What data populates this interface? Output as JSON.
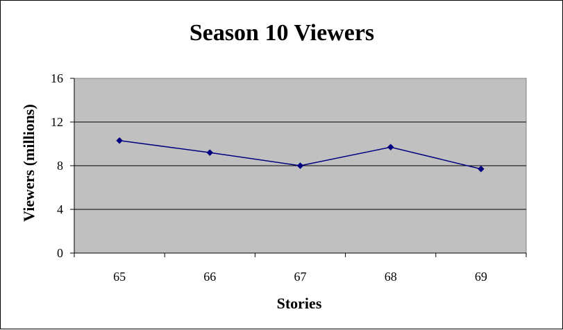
{
  "chart_data": {
    "type": "line",
    "title": "Season 10 Viewers",
    "xlabel": "Stories",
    "ylabel": "Viewers (millions)",
    "categories": [
      "65",
      "66",
      "67",
      "68",
      "69"
    ],
    "series": [
      {
        "values": [
          10.3,
          9.2,
          8.0,
          9.7,
          7.7
        ]
      }
    ],
    "ylim": [
      0,
      16
    ],
    "yticks": [
      "0",
      "4",
      "8",
      "12",
      "16"
    ],
    "grid": "horizontal",
    "legend": "none",
    "colors": {
      "plot_background": "#c0c0c0",
      "series_line": "#000080",
      "gridline": "#000000"
    }
  }
}
